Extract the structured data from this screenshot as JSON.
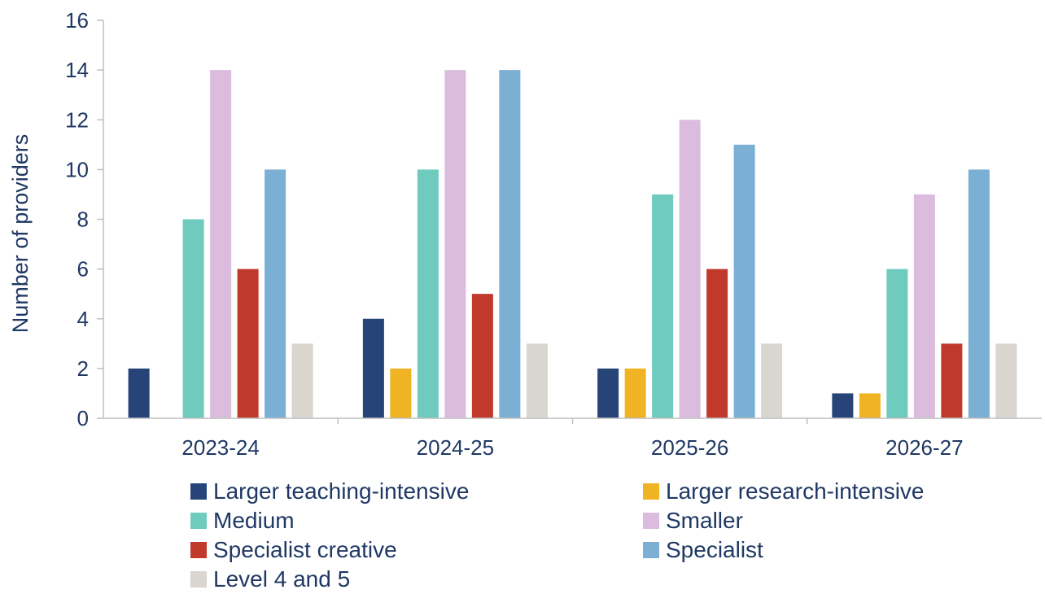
{
  "chart_data": {
    "type": "bar",
    "ylabel": "Number of providers",
    "ylim": [
      0,
      16
    ],
    "yticks": [
      0,
      2,
      4,
      6,
      8,
      10,
      12,
      14,
      16
    ],
    "grid": false,
    "legend_position": "bottom",
    "categories": [
      "2023-24",
      "2024-25",
      "2025-26",
      "2026-27"
    ],
    "series": [
      {
        "name": "Larger teaching-intensive",
        "color": "#264478",
        "values": [
          2,
          4,
          2,
          1
        ]
      },
      {
        "name": "Larger research-intensive",
        "color": "#f0b323",
        "values": [
          0,
          2,
          2,
          1
        ]
      },
      {
        "name": "Medium",
        "color": "#6ecbbd",
        "values": [
          8,
          10,
          9,
          6
        ]
      },
      {
        "name": "Smaller",
        "color": "#dbbcdf",
        "values": [
          14,
          14,
          12,
          9
        ]
      },
      {
        "name": "Specialist creative",
        "color": "#c0392b",
        "values": [
          6,
          5,
          6,
          3
        ]
      },
      {
        "name": "Specialist",
        "color": "#7bafd4",
        "values": [
          10,
          14,
          11,
          10
        ]
      },
      {
        "name": "Level 4 and 5",
        "color": "#d9d5cf",
        "values": [
          3,
          3,
          3,
          3
        ]
      }
    ]
  }
}
